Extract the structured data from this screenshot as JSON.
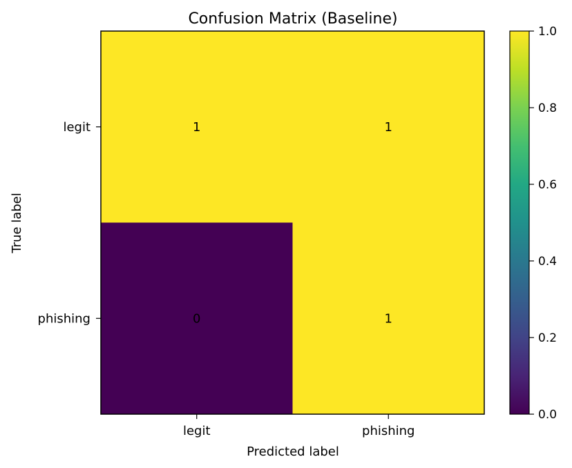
{
  "chart_data": {
    "type": "heatmap",
    "title": "Confusion Matrix (Baseline)",
    "xlabel": "Predicted label",
    "ylabel": "True label",
    "x_categories": [
      "legit",
      "phishing"
    ],
    "y_categories": [
      "legit",
      "phishing"
    ],
    "values": [
      [
        1,
        1
      ],
      [
        0,
        1
      ]
    ],
    "colormap": "viridis",
    "colorbar": {
      "range": [
        0.0,
        1.0
      ],
      "ticks": [
        "0.0",
        "0.2",
        "0.4",
        "0.6",
        "0.8",
        "1.0"
      ],
      "low_color": "#440154",
      "high_color": "#fde725"
    },
    "grid": false
  }
}
